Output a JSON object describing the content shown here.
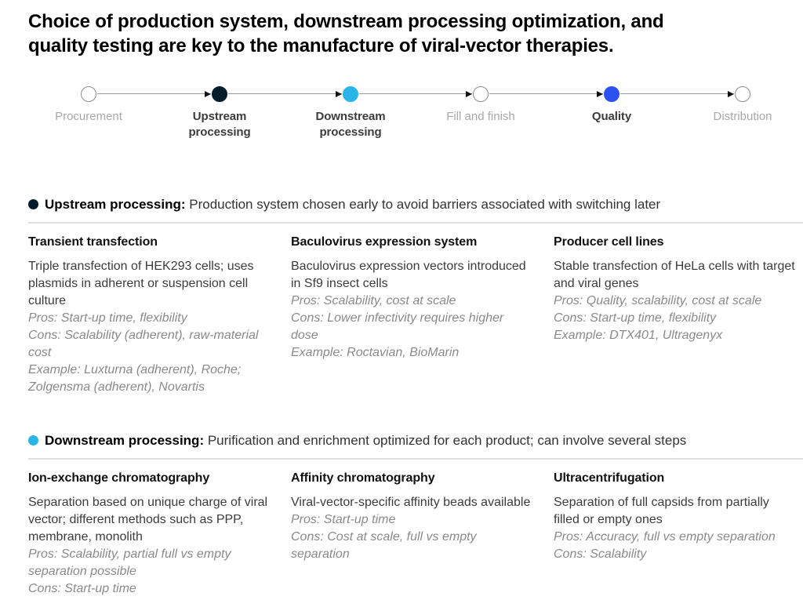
{
  "title": {
    "line1": "Choice of production system, downstream processing optimization, and",
    "line2": "quality testing are key to the manufacture of viral-vector therapies."
  },
  "colors": {
    "dark_navy": "#051C2C",
    "cyan": "#29B5E8",
    "blue": "#2B52F0",
    "inactive_circle_border": "#8C8C8C",
    "connector": "#9A9A9A",
    "note_gray": "#8A8A8A"
  },
  "timeline": {
    "steps": [
      {
        "label": "Procurement",
        "state": "inactive",
        "fill": "none"
      },
      {
        "label": "Upstream processing",
        "state": "active",
        "fill": "#051C2C"
      },
      {
        "label": "Downstream processing",
        "state": "active",
        "fill": "#29B5E8"
      },
      {
        "label": "Fill and finish",
        "state": "inactive",
        "fill": "none"
      },
      {
        "label": "Quality",
        "state": "active",
        "fill": "#2B52F0"
      },
      {
        "label": "Distribution",
        "state": "inactive",
        "fill": "none"
      }
    ]
  },
  "sections": [
    {
      "bullet_color": "#051C2C",
      "name": "Upstream processing:",
      "description": "Production system chosen early to avoid barriers associated with switching later",
      "columns": [
        {
          "heading": "Transient transfection",
          "body": "Triple transfection of HEK293 cells; uses plasmids in adherent or suspension cell culture",
          "notes": [
            "Pros: Start-up time, flexibility",
            "Cons: Scalability (adherent), raw-material cost",
            "Example: Luxturna (adherent), Roche; Zolgensma (adherent), Novartis"
          ]
        },
        {
          "heading": "Baculovirus expression system",
          "body": "Baculovirus expression vectors introduced in Sf9 insect cells",
          "notes": [
            "Pros: Scalability, cost at scale",
            "Cons: Lower infectivity requires higher dose",
            "Example: Roctavian, BioMarin"
          ]
        },
        {
          "heading": "Producer cell lines",
          "body": "Stable transfection of HeLa cells with target and viral genes",
          "notes": [
            "Pros: Quality, scalability, cost at scale",
            "Cons: Start-up time, flexibility",
            "Example: DTX401, Ultragenyx"
          ]
        }
      ]
    },
    {
      "bullet_color": "#29B5E8",
      "name": "Downstream processing:",
      "description": "Purification and enrichment optimized for each product; can involve several steps",
      "columns": [
        {
          "heading": "Ion-exchange chromatography",
          "body": "Separation based on unique charge of viral vector; different methods such as PPP, membrane, monolith",
          "notes": [
            "Pros: Scalability, partial full vs empty separation possible",
            "Cons: Start-up time"
          ]
        },
        {
          "heading": "Affinity chromatography",
          "body": "Viral-vector-specific affinity beads available",
          "notes": [
            "Pros: Start-up time",
            "Cons: Cost at scale, full vs empty separation"
          ]
        },
        {
          "heading": "Ultracentrifugation",
          "body": "Separation of full capsids from partially filled or empty ones",
          "notes": [
            "Pros: Accuracy, full vs empty separation",
            "Cons: Scalability"
          ]
        }
      ]
    }
  ]
}
